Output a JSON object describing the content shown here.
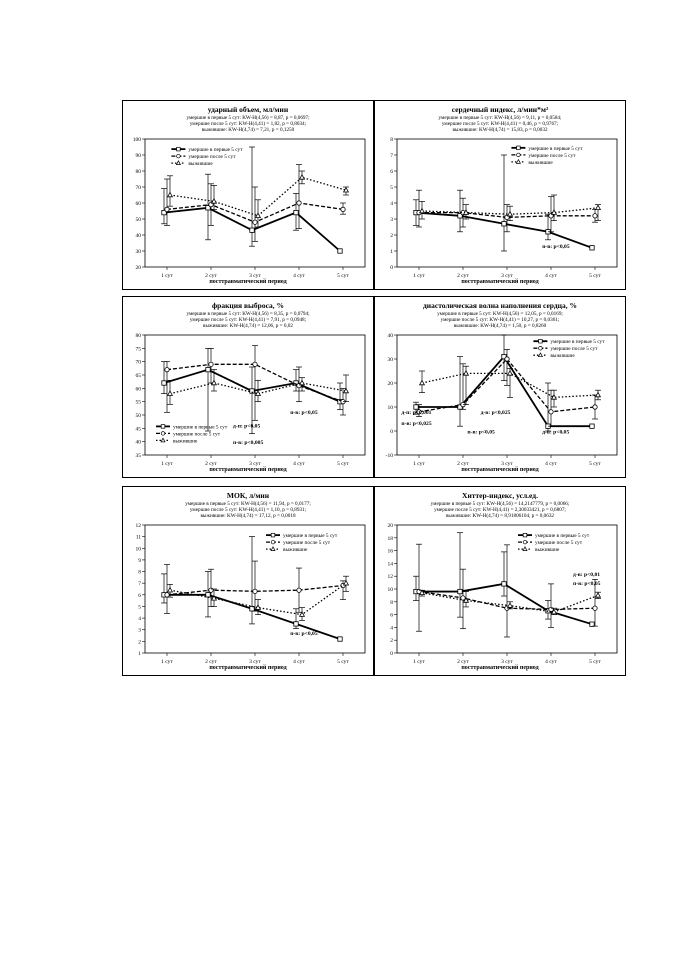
{
  "chart_data": [
    {
      "type": "line",
      "title": "ударный объем, мл/мин",
      "stats": [
        "умершие в первые 5 сут: KW-H(4,56) = 8,87, p = 0,0697;",
        "умершие после 5 сут: KW-H(4,41) = 1,82, p = 0,8034;",
        "выжившие: KW-H(4,74) = 7,21, p = 0,1250"
      ],
      "xlabel": "посттравматический период",
      "categories": [
        "1 сут",
        "2 сут",
        "3 сут",
        "4 сут",
        "5 сут"
      ],
      "ylim": [
        20,
        100
      ],
      "yticks": [
        20,
        30,
        40,
        50,
        60,
        70,
        80,
        90,
        100
      ],
      "legend": [
        "умершие в первые 5 сут",
        "умершие после 5 сут",
        "выжившие"
      ],
      "annotations": [],
      "series": [
        {
          "name": "умершие в первые 5 сут",
          "values": [
            54,
            57,
            43,
            54,
            30
          ],
          "lo": [
            47,
            37,
            33,
            43,
            null
          ],
          "hi": [
            69,
            78,
            95,
            66,
            null
          ]
        },
        {
          "name": "умершие после 5 сут",
          "values": [
            56,
            59,
            48,
            60,
            56
          ],
          "lo": [
            46,
            46,
            36,
            44,
            53
          ],
          "hi": [
            75,
            72,
            70,
            84,
            60
          ]
        },
        {
          "name": "выжившие",
          "values": [
            65,
            61,
            52,
            76,
            68
          ],
          "lo": [
            58,
            56,
            45,
            72,
            65
          ],
          "hi": [
            77,
            71,
            62,
            80,
            70
          ]
        }
      ]
    },
    {
      "type": "line",
      "title": "сердечный индекс, л/мин*м²",
      "stats": [
        "умершие в первые 5 сут: KW-H(4,56) = 9,11, p = 0,0584;",
        "умершие после 5 сут: KW-H(4,41) = 0,46, p = 0,9767;",
        "выжившие: KW-H(4,74) = 15,83, p = 0,0032"
      ],
      "xlabel": "посттравматический период",
      "categories": [
        "1 сут",
        "2 сут",
        "3 сут",
        "4 сут",
        "5 сут"
      ],
      "ylim": [
        0,
        8
      ],
      "yticks": [
        0,
        1,
        2,
        3,
        4,
        5,
        6,
        7,
        8
      ],
      "legend": [
        "умершие в первые 5 сут",
        "умершие после 5 сут",
        "выжившие"
      ],
      "annotations": [
        "п-в: p<0,05"
      ],
      "series": [
        {
          "name": "умершие в первые 5 сут",
          "values": [
            3.4,
            3.2,
            2.7,
            2.2,
            1.2
          ],
          "lo": [
            2.6,
            2.2,
            1.0,
            1.7,
            null
          ],
          "hi": [
            4.2,
            4.8,
            7.0,
            3.3,
            null
          ]
        },
        {
          "name": "умершие после 5 сут",
          "values": [
            3.4,
            3.4,
            3.1,
            3.2,
            3.2
          ],
          "lo": [
            2.5,
            2.5,
            2.2,
            2.2,
            2.8
          ],
          "hi": [
            4.8,
            4.3,
            3.9,
            4.4,
            3.6
          ]
        },
        {
          "name": "выжившие",
          "values": [
            3.5,
            3.4,
            3.3,
            3.4,
            3.7
          ],
          "lo": [
            3.0,
            3.0,
            2.9,
            2.9,
            2.9
          ],
          "hi": [
            4.1,
            3.9,
            3.8,
            4.5,
            3.9
          ]
        }
      ]
    },
    {
      "type": "line",
      "title": "фракция выброса, %",
      "stats": [
        "умершие в первые 5 сут: KW-H(4,56) = 8,35, p = 0,0794;",
        "умершие после 5 сут: KW-H(4,41) = 7,91, p = 0,0948;",
        "выжившие: KW-H(4,74) = 12,06, p = 0,02"
      ],
      "xlabel": "посттравматический период",
      "categories": [
        "1 сут",
        "2 сут",
        "3 сут",
        "4 сут",
        "5 сут"
      ],
      "ylim": [
        35,
        80
      ],
      "yticks": [
        35,
        40,
        45,
        50,
        55,
        60,
        65,
        70,
        75,
        80
      ],
      "legend": [
        "умершие в первые 5 сут",
        "умершие после 5 сут",
        "выжившие"
      ],
      "annotations": [
        "п-в: p<0,05",
        "д-п: p<0,05",
        "п-в: p<0,005"
      ],
      "series": [
        {
          "name": "умершие в первые 5 сут",
          "values": [
            62,
            67,
            59,
            62,
            55
          ],
          "lo": [
            58,
            44,
            43,
            59,
            52
          ],
          "hi": [
            70,
            75,
            68,
            67,
            62
          ]
        },
        {
          "name": "умершие после 5 сут",
          "values": [
            67,
            69,
            69,
            61,
            55
          ],
          "lo": [
            51,
            62,
            48,
            55,
            50
          ],
          "hi": [
            70,
            75,
            76,
            68,
            60
          ]
        },
        {
          "name": "выжившие",
          "values": [
            58,
            62,
            58,
            62,
            59
          ],
          "lo": [
            54,
            59,
            55,
            59,
            55
          ],
          "hi": [
            63,
            67,
            63,
            64,
            65
          ]
        }
      ]
    },
    {
      "type": "line",
      "title": "диастолическая волна наполнения сердца, %",
      "stats": [
        "умершие в первые 5 сут: KW-H(4,56) = 12,05, p = 0,0169;",
        "умершие после 5 сут: KW-H(4,41) = 10,27, p = 0,0361;",
        "выжившие: KW-H(4,74) = 1,50, p = 0,8260"
      ],
      "xlabel": "посттравматический период",
      "categories": [
        "1 сут",
        "2 сут",
        "3 сут",
        "4 сут",
        "5 сут"
      ],
      "ylim": [
        -10,
        40
      ],
      "yticks": [
        -10,
        0,
        10,
        20,
        30,
        40
      ],
      "legend": [
        "умершие в первые 5 сут",
        "умершие после 5 сут",
        "выжившие"
      ],
      "annotations": [
        "д-п: p<0,001",
        "п-в: p<0,025",
        "д-в: p<0,025",
        "п-в: p<0,05",
        "д-в: p<0,05"
      ],
      "series": [
        {
          "name": "умершие в первые 5 сут",
          "values": [
            10,
            10,
            31,
            2,
            2
          ],
          "lo": [
            7,
            2,
            21,
            0,
            null
          ],
          "hi": [
            12,
            31,
            40,
            20,
            null
          ]
        },
        {
          "name": "умершие после 5 сут",
          "values": [
            8,
            11,
            30,
            8,
            10
          ],
          "lo": [
            6,
            9,
            19,
            2,
            5
          ],
          "hi": [
            11,
            28,
            34,
            17,
            15
          ]
        },
        {
          "name": "выжившие",
          "values": [
            20,
            24,
            24,
            14,
            15
          ],
          "lo": [
            16,
            11,
            14,
            10,
            13
          ],
          "hi": [
            25,
            27,
            26,
            17,
            17
          ]
        }
      ]
    },
    {
      "type": "line",
      "title": "МОК, л/мин",
      "stats": [
        "умершие в первые 5 сут: KW-H(4,56) = 11,94, p = 0,0177;",
        "умершие после 5 сут: KW-H(4,41) = 1,10, p = 0,8931;",
        "выжившие: KW-H(4,74) = 17,12, p = 0,0018"
      ],
      "xlabel": "посттравматический период",
      "categories": [
        "1 сут",
        "2 сут",
        "3 сут",
        "4 сут",
        "5 сут"
      ],
      "ylim": [
        1,
        12
      ],
      "yticks": [
        1,
        2,
        3,
        4,
        5,
        6,
        7,
        8,
        9,
        10,
        11,
        12
      ],
      "legend": [
        "умершие в первые 5 сут",
        "умершие после 5 сут",
        "выжившие"
      ],
      "annotations": [
        "п-в: p<0,05"
      ],
      "series": [
        {
          "name": "умершие в первые 5 сут",
          "values": [
            6,
            6,
            4.8,
            3.5,
            2.2
          ],
          "lo": [
            5.3,
            4.1,
            3.5,
            3.1,
            null
          ],
          "hi": [
            7.8,
            8.0,
            11.0,
            4.8,
            null
          ]
        },
        {
          "name": "умершие после 5 сут",
          "values": [
            6,
            6.4,
            6.3,
            6.4,
            6.8
          ],
          "lo": [
            4.4,
            5.0,
            4.6,
            4.5,
            5.6
          ],
          "hi": [
            8.6,
            8.2,
            8.9,
            8.3,
            7.2
          ]
        },
        {
          "name": "выжившие",
          "values": [
            6.4,
            5.7,
            4.9,
            4.3,
            7.0
          ],
          "lo": [
            5.8,
            5.0,
            4.3,
            3.8,
            6.3
          ],
          "hi": [
            6.9,
            6.5,
            5.6,
            4.9,
            7.6
          ]
        }
      ]
    },
    {
      "type": "line",
      "title": "Хиттер-индекс, усл.ед.",
      "stats": [
        "умершие в первые 5 сут: KW-H(4,56) = 14,2147779, p = 0,0066;",
        "умершие после 5 сут: KW-H(4,41) = 2,30033421, p = 0,6807;",
        "выжившие: KW-H(4,74) = 8,91806104, p = 0,0632"
      ],
      "xlabel": "посттравматический период",
      "categories": [
        "1 сут",
        "2 сут",
        "3 сут",
        "4 сут",
        "5 сут"
      ],
      "ylim": [
        0,
        20
      ],
      "yticks": [
        0,
        2,
        4,
        6,
        8,
        10,
        12,
        14,
        16,
        18,
        20
      ],
      "legend": [
        "умершие в первые 5 сут",
        "умершие после 5 сут",
        "выжившие"
      ],
      "annotations": [
        "д-в: p<0,01",
        "п-в: p<0,05"
      ],
      "series": [
        {
          "name": "умершие в первые 5 сут",
          "values": [
            9.6,
            9.6,
            10.8,
            6.6,
            4.5
          ],
          "lo": [
            8.2,
            5.6,
            8.9,
            5.3,
            null
          ],
          "hi": [
            12.0,
            18.8,
            15.8,
            8.2,
            null
          ]
        },
        {
          "name": "умершие после 5 сут",
          "values": [
            9.6,
            8.6,
            7.0,
            6.8,
            7.0
          ],
          "lo": [
            3.4,
            3.8,
            2.5,
            4.0,
            4.2
          ],
          "hi": [
            17.0,
            13.1,
            16.9,
            10.8,
            11.5
          ]
        },
        {
          "name": "выжившие",
          "values": [
            9.4,
            8.2,
            7.4,
            6.4,
            9.0
          ],
          "lo": [
            8.9,
            7.2,
            6.9,
            6.0,
            8.5
          ],
          "hi": [
            9.8,
            9.6,
            8.0,
            7.0,
            9.5
          ]
        }
      ]
    }
  ]
}
